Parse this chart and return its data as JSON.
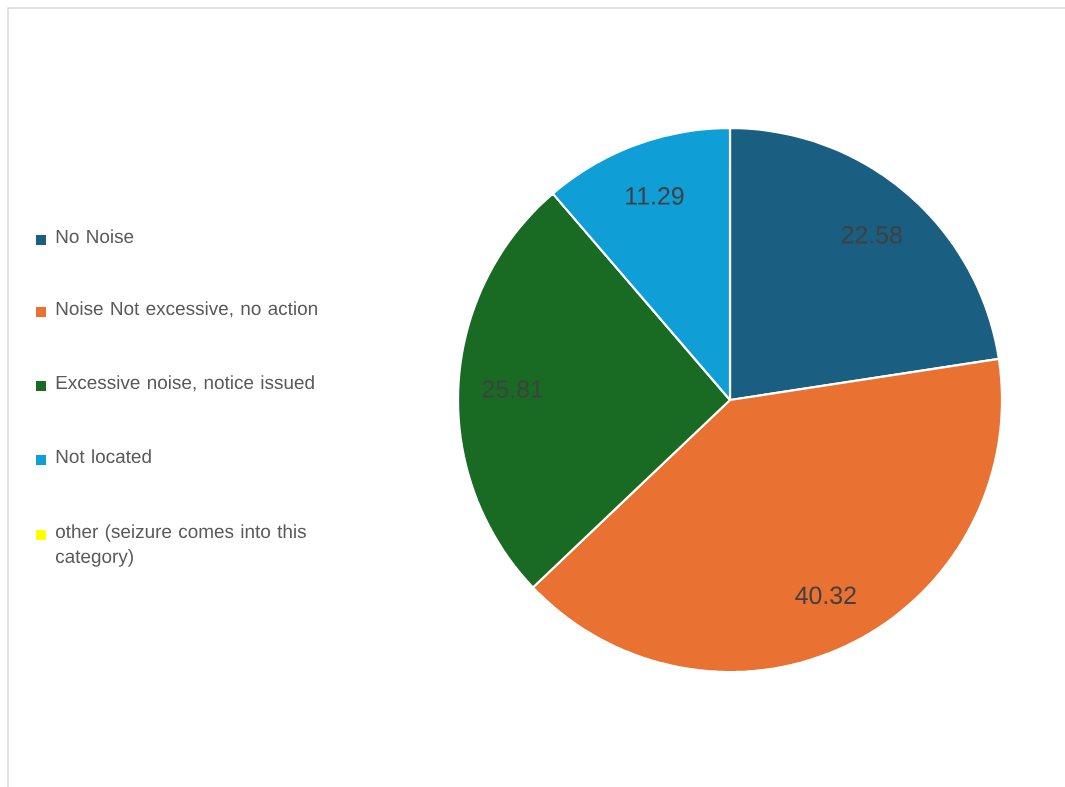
{
  "chart_data": {
    "type": "pie",
    "categories": [
      "No Noise",
      "Noise Not excessive, no action",
      "Excessive noise, notice issued",
      "Not located",
      "other (seizure comes into this category)"
    ],
    "values": [
      22.58,
      40.32,
      25.81,
      11.29,
      0
    ],
    "colors": [
      "#1a5f82",
      "#e97132",
      "#196b24",
      "#0f9ed5",
      "#ffff00"
    ],
    "value_labels": [
      "22.58",
      "40.32",
      "25.81",
      "11.29",
      null
    ],
    "legend": "left"
  }
}
